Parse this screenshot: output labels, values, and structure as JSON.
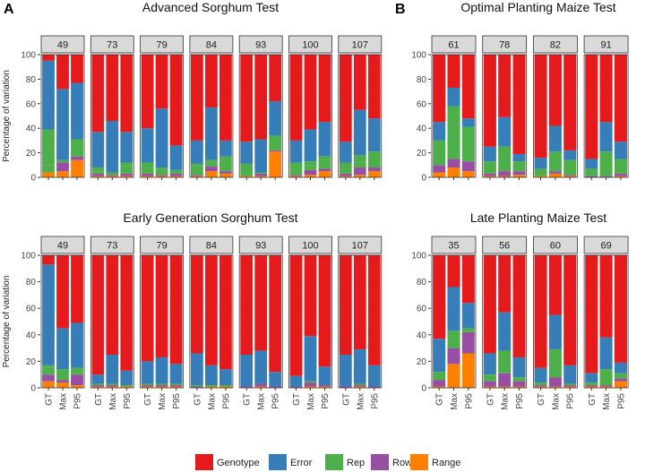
{
  "legend": [
    {
      "name": "Genotype",
      "color": "#E41A1C"
    },
    {
      "name": "Error",
      "color": "#377EB8"
    },
    {
      "name": "Rep",
      "color": "#4DAF4A"
    },
    {
      "name": "Row",
      "color": "#984EA3"
    },
    {
      "name": "Range",
      "color": "#FF7F00"
    }
  ],
  "colors": {
    "strip_fill": "#D9D9D9",
    "strip_border": "#333333",
    "panel_border": "#333333",
    "grid": "#EBEBEB"
  },
  "chart_data": [
    {
      "type": "bar",
      "stacked": true,
      "panel_label": "A",
      "title": "Advanced Sorghum Test",
      "ylabel": "Percentage of variation",
      "ylim": [
        0,
        100
      ],
      "yticks": [
        0,
        20,
        40,
        60,
        80,
        100
      ],
      "categories": [
        "GT",
        "Max",
        "P95"
      ],
      "show_x_labels": false,
      "facets": [
        {
          "label": "49",
          "bars": [
            [
              4,
              0,
              6,
              29,
              56,
              5
            ],
            [
              5,
              7,
              2,
              0,
              58,
              28
            ],
            [
              14,
              3,
              2,
              12,
              46,
              23
            ]
          ]
        },
        {
          "label": "73",
          "bars": [
            [
              1,
              2,
              2,
              3,
              29,
              63
            ],
            [
              1,
              1,
              2,
              0,
              42,
              54
            ],
            [
              1,
              2,
              6,
              3,
              25,
              63
            ]
          ]
        },
        {
          "label": "79",
          "bars": [
            [
              1,
              2,
              5,
              4,
              28,
              60
            ],
            [
              1,
              1,
              4,
              2,
              48,
              44
            ],
            [
              1,
              2,
              3,
              0,
              20,
              74
            ]
          ]
        },
        {
          "label": "84",
          "bars": [
            [
              1,
              1,
              7,
              2,
              19,
              70
            ],
            [
              5,
              4,
              3,
              2,
              43,
              43
            ],
            [
              3,
              2,
              12,
              0,
              13,
              70
            ]
          ]
        },
        {
          "label": "93",
          "bars": [
            [
              1,
              0,
              3,
              7,
              18,
              71
            ],
            [
              1,
              2,
              1,
              0,
              27,
              69
            ],
            [
              21,
              1,
              12,
              0,
              28,
              38
            ]
          ]
        },
        {
          "label": "100",
          "bars": [
            [
              1,
              1,
              5,
              5,
              18,
              70
            ],
            [
              2,
              4,
              4,
              3,
              26,
              61
            ],
            [
              5,
              2,
              7,
              3,
              28,
              55
            ]
          ]
        },
        {
          "label": "107",
          "bars": [
            [
              1,
              2,
              4,
              5,
              17,
              71
            ],
            [
              2,
              6,
              4,
              6,
              37,
              45
            ],
            [
              5,
              3,
              7,
              6,
              27,
              52
            ]
          ]
        }
      ]
    },
    {
      "type": "bar",
      "stacked": true,
      "panel_label": "B",
      "title": "Optimal Planting Maize Test",
      "ylabel": "",
      "ylim": [
        0,
        100
      ],
      "yticks": [
        0,
        20,
        40,
        60,
        80,
        100
      ],
      "categories": [
        "GT",
        "Max",
        "P95"
      ],
      "show_x_labels": false,
      "facets": [
        {
          "label": "61",
          "bars": [
            [
              4,
              6,
              20,
              15,
              55
            ],
            [
              8,
              7,
              43,
              15,
              27
            ],
            [
              5,
              8,
              28,
              7,
              52
            ]
          ]
        },
        {
          "label": "78",
          "bars": [
            [
              1,
              2,
              10,
              12,
              75
            ],
            [
              1,
              4,
              20,
              24,
              51
            ],
            [
              2,
              3,
              8,
              6,
              81
            ]
          ]
        },
        {
          "label": "82",
          "bars": [
            [
              1,
              0,
              6,
              9,
              84
            ],
            [
              3,
              2,
              16,
              21,
              58
            ],
            [
              1,
              1,
              12,
              8,
              78
            ]
          ]
        },
        {
          "label": "91",
          "bars": [
            [
              0,
              1,
              6,
              8,
              85
            ],
            [
              0,
              1,
              20,
              24,
              55
            ],
            [
              1,
              2,
              12,
              14,
              71
            ]
          ]
        }
      ]
    },
    {
      "type": "bar",
      "stacked": true,
      "title": "Early Generation Sorghum Test",
      "ylabel": "Percentage of variation",
      "ylim": [
        0,
        100
      ],
      "yticks": [
        0,
        20,
        40,
        60,
        80,
        100
      ],
      "categories": [
        "GT",
        "Max",
        "P95"
      ],
      "show_x_labels": true,
      "facets": [
        {
          "label": "49",
          "bars": [
            [
              5,
              5,
              5,
              2,
              76,
              7
            ],
            [
              4,
              2,
              8,
              0,
              31,
              55
            ],
            [
              2,
              8,
              5,
              0,
              34,
              51
            ]
          ]
        },
        {
          "label": "73",
          "bars": [
            [
              1,
              1,
              1,
              0,
              7,
              90
            ],
            [
              1,
              1,
              1,
              0,
              22,
              75
            ],
            [
              1,
              0,
              1,
              0,
              11,
              87
            ]
          ]
        },
        {
          "label": "79",
          "bars": [
            [
              1,
              1,
              1,
              0,
              17,
              80
            ],
            [
              1,
              1,
              1,
              0,
              20,
              77
            ],
            [
              1,
              1,
              1,
              0,
              15,
              82
            ]
          ]
        },
        {
          "label": "84",
          "bars": [
            [
              0,
              1,
              1,
              0,
              24,
              74
            ],
            [
              1,
              0,
              1,
              0,
              15,
              83
            ],
            [
              1,
              0,
              1,
              0,
              12,
              86
            ]
          ]
        },
        {
          "label": "93",
          "bars": [
            [
              0,
              1,
              0,
              0,
              24,
              75
            ],
            [
              1,
              2,
              0,
              0,
              25,
              72
            ],
            [
              0,
              1,
              0,
              0,
              11,
              88
            ]
          ]
        },
        {
          "label": "100",
          "bars": [
            [
              0,
              1,
              0,
              0,
              8,
              91
            ],
            [
              1,
              3,
              1,
              0,
              34,
              61
            ],
            [
              1,
              1,
              0,
              0,
              14,
              84
            ]
          ]
        },
        {
          "label": "107",
          "bars": [
            [
              0,
              1,
              0,
              0,
              24,
              75
            ],
            [
              1,
              1,
              1,
              0,
              26,
              71
            ],
            [
              0,
              1,
              0,
              0,
              16,
              83
            ]
          ]
        }
      ]
    },
    {
      "type": "bar",
      "stacked": true,
      "title": "Late Planting Maize Test",
      "ylabel": "",
      "ylim": [
        0,
        100
      ],
      "yticks": [
        0,
        20,
        40,
        60,
        80,
        100
      ],
      "categories": [
        "GT",
        "Max",
        "P95"
      ],
      "show_x_labels": true,
      "facets": [
        {
          "label": "35",
          "bars": [
            [
              1,
              5,
              6,
              25,
              63
            ],
            [
              18,
              12,
              13,
              33,
              24
            ],
            [
              26,
              16,
              3,
              19,
              36
            ]
          ]
        },
        {
          "label": "56",
          "bars": [
            [
              1,
              4,
              5,
              16,
              74
            ],
            [
              1,
              10,
              17,
              29,
              43
            ],
            [
              1,
              4,
              3,
              15,
              77
            ]
          ]
        },
        {
          "label": "60",
          "bars": [
            [
              1,
              1,
              2,
              11,
              85
            ],
            [
              1,
              7,
              21,
              26,
              45
            ],
            [
              1,
              1,
              1,
              14,
              83
            ]
          ]
        },
        {
          "label": "69",
          "bars": [
            [
              1,
              1,
              2,
              7,
              89
            ],
            [
              1,
              1,
              12,
              24,
              62
            ],
            [
              5,
              2,
              4,
              8,
              81
            ]
          ]
        }
      ]
    }
  ],
  "layout_note": "sorghum bars order bottom->top: Range, Row, Rep, Error, Genotype (Row optional) ; maize bars: Range, Row, Rep, Error, Genotype"
}
